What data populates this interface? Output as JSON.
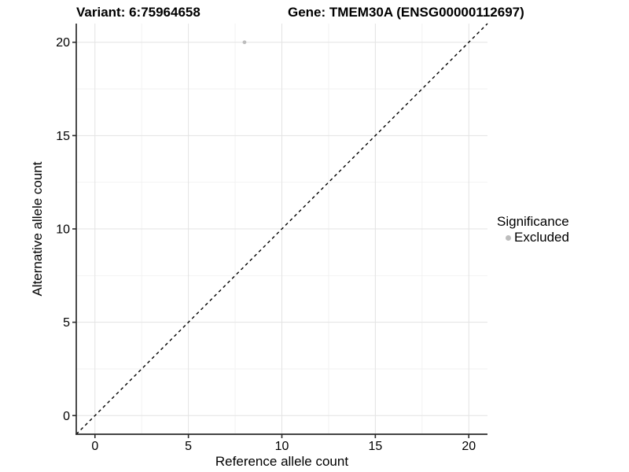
{
  "chart_data": {
    "type": "scatter",
    "title_left": "Variant: 6:75964658",
    "title_right": "Gene: TMEM30A (ENSG00000112697)",
    "xlabel": "Reference allele count",
    "ylabel": "Alternative allele count",
    "xlim": [
      -1,
      21
    ],
    "ylim": [
      -1,
      21
    ],
    "x_ticks": [
      0,
      5,
      10,
      15,
      20
    ],
    "y_ticks": [
      0,
      5,
      10,
      15,
      20
    ],
    "x_minor_ticks": [
      2.5,
      7.5,
      12.5,
      17.5
    ],
    "y_minor_ticks": [
      2.5,
      7.5,
      12.5,
      17.5
    ],
    "grid": "major+minor",
    "reference_line": {
      "type": "identity",
      "slope": 1,
      "intercept": 0,
      "style": "dashed",
      "color": "#000000"
    },
    "series": [
      {
        "name": "Excluded",
        "color": "#bdbdbd",
        "points": [
          [
            8,
            20
          ]
        ]
      }
    ],
    "legend": {
      "title": "Significance",
      "position": "right",
      "items": [
        {
          "label": "Excluded",
          "color": "#bdbdbd",
          "marker": "circle"
        }
      ]
    }
  },
  "colors": {
    "background": "#ffffff",
    "grid_major": "#e3e3e3",
    "grid_minor": "#f2f2f2",
    "axis": "#2a2a2a",
    "text": "#000000"
  }
}
